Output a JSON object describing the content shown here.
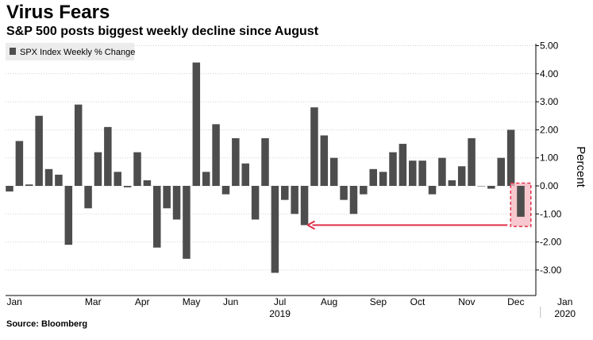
{
  "title": "Virus Fears",
  "subtitle": "S&P 500 posts biggest weekly decline since August",
  "source": "Source: Bloomberg",
  "colors": {
    "bar": "#4d4d4d",
    "highlight_fill": "#f4b6bd",
    "highlight_stroke": "#e0304a",
    "arrow": "#e0304a",
    "grid": "#cfcfcf"
  },
  "chart_data": {
    "type": "bar",
    "legend": "SPX Index Weekly % Change",
    "ylabel": "Percent",
    "ylim": [
      -3.8,
      5.0
    ],
    "yticks": [
      5.0,
      4.0,
      3.0,
      2.0,
      1.0,
      0.0,
      -1.0,
      -2.0,
      -3.0
    ],
    "ytick_labels": [
      "5.00",
      "4.00",
      "3.00",
      "2.00",
      "1.00",
      "0.00",
      "-1.00",
      "-2.00",
      "-3.00"
    ],
    "month_labels": [
      "Jan",
      "Mar",
      "Apr",
      "May",
      "Jun",
      "Jul",
      "Aug",
      "Sep",
      "Oct",
      "Nov",
      "Dec",
      "Jan"
    ],
    "month_week_index": [
      0.5,
      8.5,
      13.5,
      18.5,
      22.5,
      27.5,
      32.5,
      37.5,
      41.5,
      46.5,
      51.5,
      56.5
    ],
    "year_labels": [
      {
        "text": "2019",
        "week": 27.5
      },
      {
        "text": "2020",
        "week": 56.5
      }
    ],
    "year_divider_week": 54,
    "values": [
      -0.2,
      1.6,
      0.05,
      2.5,
      0.6,
      0.4,
      -2.1,
      2.9,
      -0.8,
      1.2,
      2.1,
      0.5,
      -0.05,
      1.2,
      0.2,
      -2.2,
      -0.8,
      -1.2,
      -2.6,
      4.4,
      0.5,
      2.2,
      -0.3,
      1.7,
      0.8,
      -1.2,
      1.7,
      -3.1,
      -0.5,
      -1.0,
      -1.4,
      2.8,
      1.8,
      1.0,
      -0.5,
      -1.0,
      -0.3,
      0.6,
      0.5,
      1.2,
      1.5,
      0.9,
      0.9,
      -0.3,
      1.0,
      0.2,
      0.7,
      1.7,
      0.0,
      -0.1,
      1.0,
      2.0,
      -1.1
    ],
    "highlight_index": 52,
    "arrow_to_index": 30
  }
}
